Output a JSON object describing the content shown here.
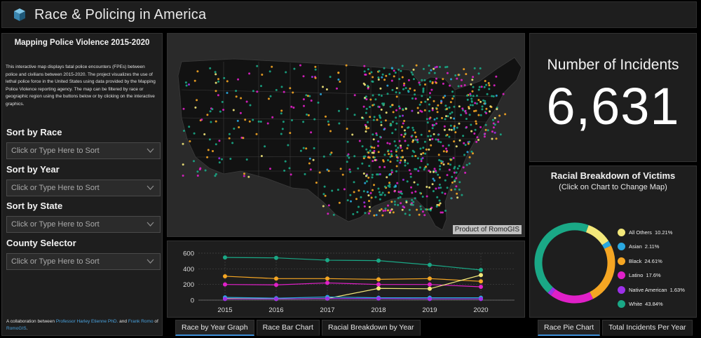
{
  "header": {
    "title": "Race & Policing in America"
  },
  "left": {
    "title": "Mapping Police Violence 2015-2020",
    "description": "This interactive map displays fatal police encounters (FPEs) between police and civilians between 2015-2020. The project visualizes the use of lethal police force in the United States using data provided by the Mapping Police Violence reporting agency. The map can be filtered by race or geographic region using the buttons below or by clicking on the interactive graphics.",
    "filters": [
      {
        "label": "Sort by Race",
        "placeholder": "Click or Type Here to Sort"
      },
      {
        "label": "Sort by Year",
        "placeholder": "Click or Type Here to Sort"
      },
      {
        "label": "Sort by State",
        "placeholder": "Click or Type Here to Sort"
      },
      {
        "label": "County Selector",
        "placeholder": "Click or Type Here to Sort"
      }
    ],
    "collab_prefix": "A collaboration between ",
    "collab_person1": "Professor Harley Etienne PhD.",
    "collab_and": " and ",
    "collab_person2": "Frank Romo",
    "collab_of": " of ",
    "collab_org": "RomoGIS",
    "collab_end": "."
  },
  "map": {
    "attribution": "Product of RomoGIS"
  },
  "chart_tabs": [
    "Race by Year Graph",
    "Race Bar Chart",
    "Racial Breakdown by Year"
  ],
  "chart_data": [
    {
      "type": "line",
      "x": [
        2015,
        2016,
        2017,
        2018,
        2019,
        2020
      ],
      "ylim": [
        0,
        600
      ],
      "yticks": [
        0,
        200,
        400,
        600
      ],
      "series": [
        {
          "color": "#1aa886",
          "values": [
            545,
            540,
            510,
            505,
            450,
            385
          ]
        },
        {
          "color": "#f5a623",
          "values": [
            305,
            275,
            275,
            265,
            275,
            240
          ]
        },
        {
          "color": "#e020c8",
          "values": [
            200,
            195,
            220,
            200,
            200,
            170
          ]
        },
        {
          "color": "#f3e87a",
          "values": [
            20,
            15,
            20,
            150,
            145,
            320
          ]
        },
        {
          "color": "#2aa8e0",
          "values": [
            35,
            25,
            40,
            30,
            30,
            30
          ]
        },
        {
          "color": "#9d30e8",
          "values": [
            15,
            15,
            20,
            20,
            15,
            15
          ]
        }
      ]
    },
    {
      "type": "pie",
      "title": "Racial Breakdown of Victims",
      "subtitle": "(Click on Chart to Change Map)",
      "slices": [
        {
          "name": "All Others",
          "label": "10.21%",
          "value": 10.21,
          "color": "#f3e87a"
        },
        {
          "name": "Asian",
          "label": "2.11%",
          "value": 2.11,
          "color": "#2aa8e0"
        },
        {
          "name": "Black",
          "label": "24.61%",
          "value": 24.61,
          "color": "#f5a623"
        },
        {
          "name": "Latino",
          "label": "17.6%",
          "value": 17.6,
          "color": "#e020c8"
        },
        {
          "name": "Native American",
          "label": "1.63%",
          "value": 1.63,
          "color": "#9d30e8"
        },
        {
          "name": "White",
          "label": "43.84%",
          "value": 43.84,
          "color": "#1aa886"
        }
      ]
    }
  ],
  "incidents": {
    "label": "Number of Incidents",
    "value": "6,631"
  },
  "pie_tabs": [
    "Race Pie Chart",
    "Total Incidents Per Year"
  ]
}
